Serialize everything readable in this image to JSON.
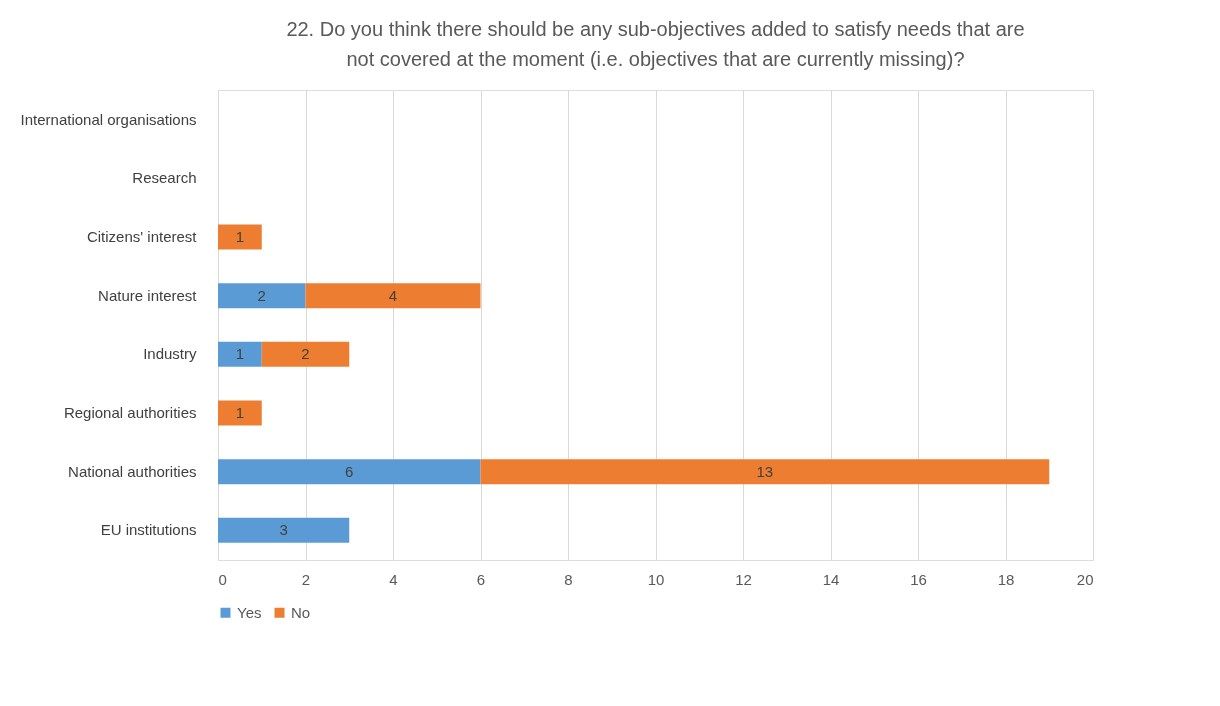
{
  "chart_data": {
    "type": "bar",
    "orientation": "horizontal",
    "stacked": true,
    "title": "22.  Do you think there should be any sub-objectives added to satisfy needs that are not covered at the moment (i.e. objectives that are currently missing)?",
    "categories": [
      "International organisations",
      "Research",
      "Citizens' interest",
      "Nature interest",
      "Industry",
      "Regional authorities",
      "National authorities",
      "EU institutions"
    ],
    "series": [
      {
        "name": "Yes",
        "color": "#5b9bd5",
        "values": [
          null,
          null,
          null,
          2,
          1,
          null,
          6,
          3
        ]
      },
      {
        "name": "No",
        "color": "#ed7d31",
        "values": [
          null,
          null,
          1,
          4,
          2,
          1,
          13,
          null
        ]
      }
    ],
    "xlim": [
      0,
      20
    ],
    "xticks": [
      0,
      2,
      4,
      6,
      8,
      10,
      12,
      14,
      16,
      18,
      20
    ],
    "grid": "x",
    "legend": "bottom",
    "data_labels": true
  }
}
